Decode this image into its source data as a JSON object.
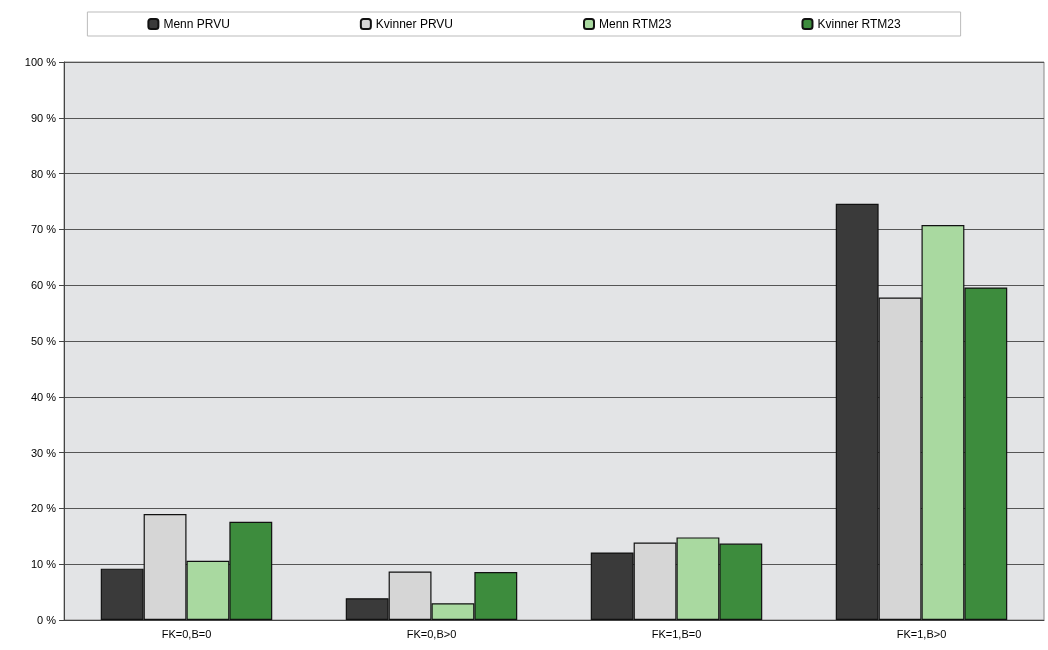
{
  "chart_data": {
    "type": "bar",
    "categories": [
      "FK=0,B=0",
      "FK=0,B>0",
      "FK=1,B=0",
      "FK=1,B>0"
    ],
    "series": [
      {
        "name": "Menn PRVU",
        "color": "#3a3a3a",
        "values": [
          9.2,
          3.9,
          12.1,
          74.6
        ]
      },
      {
        "name": "Kvinner PRVU",
        "color": "#d6d6d6",
        "values": [
          19,
          8.7,
          13.9,
          57.8
        ]
      },
      {
        "name": "Menn RTM23",
        "color": "#a9d9a0",
        "values": [
          10.6,
          3.0,
          14.8,
          70.8
        ]
      },
      {
        "name": "Kvinner RTM23",
        "color": "#3d8c3d",
        "values": [
          17.6,
          8.6,
          13.7,
          59.6
        ]
      }
    ],
    "ylim": [
      0,
      100
    ],
    "yticks": [
      {
        "value": 0,
        "label": "0 %"
      },
      {
        "value": 10,
        "label": "10 %"
      },
      {
        "value": 20,
        "label": "20 %"
      },
      {
        "value": 30,
        "label": "30 %"
      },
      {
        "value": 40,
        "label": "40 %"
      },
      {
        "value": 50,
        "label": "50 %"
      },
      {
        "value": 60,
        "label": "60 %"
      },
      {
        "value": 70,
        "label": "70 %"
      },
      {
        "value": 80,
        "label": "80 %"
      },
      {
        "value": 90,
        "label": "90 %"
      },
      {
        "value": 100,
        "label": "100 %"
      }
    ],
    "grid": "y",
    "legend": "top"
  }
}
